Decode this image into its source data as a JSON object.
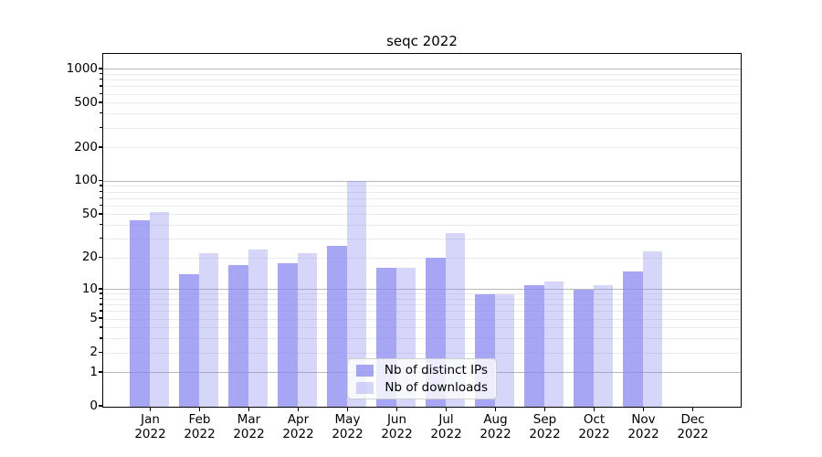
{
  "chart_data": {
    "type": "bar",
    "title": "seqc 2022",
    "year": "2022",
    "months": [
      "Jan",
      "Feb",
      "Mar",
      "Apr",
      "May",
      "Jun",
      "Jul",
      "Aug",
      "Sep",
      "Oct",
      "Nov",
      "Dec"
    ],
    "categories": [
      "Jan 2022",
      "Feb 2022",
      "Mar 2022",
      "Apr 2022",
      "May 2022",
      "Jun 2022",
      "Jul 2022",
      "Aug 2022",
      "Sep 2022",
      "Oct 2022",
      "Nov 2022",
      "Dec 2022"
    ],
    "series": [
      {
        "name": "Nb of distinct IPs",
        "values": [
          44,
          14,
          17,
          18,
          26,
          16,
          20,
          9,
          11,
          10,
          15,
          0
        ],
        "fill": "rgba(132,132,240,0.72)",
        "solid_hex": "#a6a6f2"
      },
      {
        "name": "Nb of downloads",
        "values": [
          53,
          22,
          24,
          22,
          100,
          16,
          34,
          9,
          12,
          11,
          23,
          0
        ],
        "fill": "rgba(132,132,240,0.33)",
        "solid_hex": "#d6d6f8"
      }
    ],
    "yscale": "symlog",
    "y_ticks": [
      0,
      1,
      2,
      5,
      10,
      20,
      50,
      100,
      200,
      500,
      1000
    ],
    "ylim": [
      0,
      1300
    ],
    "xlabel": "",
    "ylabel": "",
    "grid": {
      "orientation": "horizontal",
      "major_color": "#b9b9b9",
      "minor_color": "#ebebeb"
    },
    "legend": {
      "position": "lower center",
      "entries": [
        "Nb of distinct IPs",
        "Nb of downloads"
      ]
    },
    "colors": {
      "axis": "#000000",
      "background": "#ffffff"
    }
  }
}
